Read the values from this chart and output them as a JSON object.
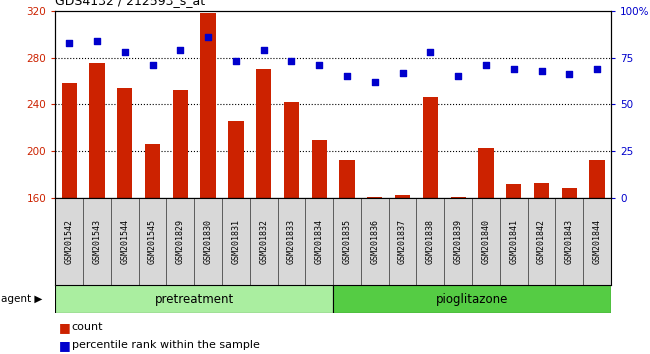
{
  "title": "GDS4132 / 212593_s_at",
  "categories": [
    "GSM201542",
    "GSM201543",
    "GSM201544",
    "GSM201545",
    "GSM201829",
    "GSM201830",
    "GSM201831",
    "GSM201832",
    "GSM201833",
    "GSM201834",
    "GSM201835",
    "GSM201836",
    "GSM201837",
    "GSM201838",
    "GSM201839",
    "GSM201840",
    "GSM201841",
    "GSM201842",
    "GSM201843",
    "GSM201844"
  ],
  "count_values": [
    258,
    275,
    254,
    206,
    252,
    318,
    226,
    270,
    242,
    210,
    193,
    161,
    163,
    246,
    161,
    203,
    172,
    173,
    169,
    193
  ],
  "percentile_values": [
    83,
    84,
    78,
    71,
    79,
    86,
    73,
    79,
    73,
    71,
    65,
    62,
    67,
    78,
    65,
    71,
    69,
    68,
    66,
    69
  ],
  "ylim_left": [
    160,
    320
  ],
  "ylim_right": [
    0,
    100
  ],
  "yticks_left": [
    160,
    200,
    240,
    280,
    320
  ],
  "yticks_right": [
    0,
    25,
    50,
    75,
    100
  ],
  "yticklabels_right": [
    "0",
    "25",
    "50",
    "75",
    "100%"
  ],
  "bar_color": "#cc2200",
  "dot_color": "#0000cc",
  "pretreatment_label": "pretreatment",
  "pioglitazone_label": "pioglitazone",
  "pretreatment_count": 10,
  "pioglitazone_count": 10,
  "agent_label": "agent",
  "legend_count_label": "count",
  "legend_percentile_label": "percentile rank within the sample",
  "bg_color": "#d8d8d8",
  "pretreatment_color": "#aaeea0",
  "pioglitazone_color": "#55cc44",
  "grid_color": "#000000",
  "bar_width": 0.55
}
